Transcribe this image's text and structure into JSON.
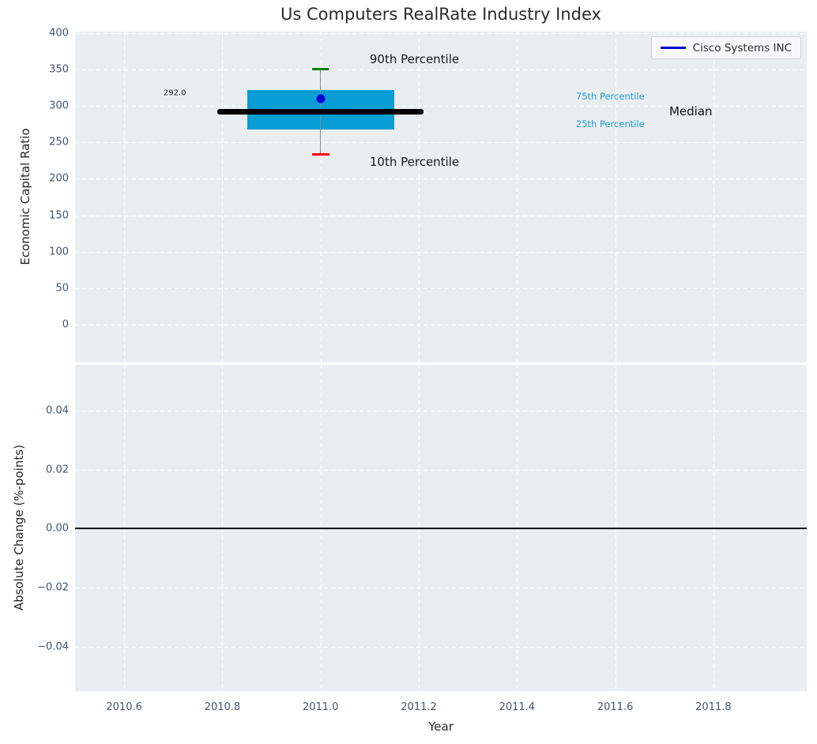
{
  "title": "Us Computers RealRate Industry Index",
  "legend": {
    "label": "Cisco Systems INC",
    "position": "upper right"
  },
  "colors": {
    "figure_bg": "#ffffff",
    "axes_bg": "#eaeef1",
    "grid": "#ffffff",
    "tick_label": "#46536b",
    "text": "#262626",
    "box_fill": "#089dd5",
    "percentile_label": "#1f9ecf",
    "median_line": "#000000",
    "whisker": "#888888",
    "p90_cap": "#008000",
    "p10_cap": "#ff0000",
    "company_marker": "#0000d6",
    "legend_line": "#0000cd",
    "zero_line": "#000000"
  },
  "chart_data": [
    {
      "type": "boxplot",
      "title": "Us Computers RealRate Industry Index",
      "ylabel": "Economic Capital Ratio",
      "ylim": [
        -52,
        402
      ],
      "grid": "white dashed, on",
      "yticks": [
        {
          "v": 400,
          "label": "400"
        },
        {
          "v": 350,
          "label": "350"
        },
        {
          "v": 300,
          "label": "300"
        },
        {
          "v": 250,
          "label": "250"
        },
        {
          "v": 200,
          "label": "200"
        },
        {
          "v": 150,
          "label": "150"
        },
        {
          "v": 100,
          "label": "100"
        },
        {
          "v": 50,
          "label": "50"
        },
        {
          "v": 0,
          "label": "0"
        }
      ],
      "box": {
        "company": "Cisco Systems INC",
        "x_center": 2011.0,
        "box_x_range": [
          2010.85,
          2011.15
        ],
        "median": 292.0,
        "median_label": "292.0",
        "median_x_range": [
          2010.79,
          2011.21
        ],
        "q1_25th_percentile": 268,
        "q3_75th_percentile": 322,
        "p10_10th_percentile": 233,
        "p90_90th_percentile": 350,
        "company_value": 310
      },
      "annotations": [
        {
          "text": "90th Percentile",
          "x": 2011.1,
          "y": 364,
          "color": "#1a1a1a",
          "size": 15
        },
        {
          "text": "10th Percentile",
          "x": 2011.1,
          "y": 223,
          "color": "#1a1a1a",
          "size": 15
        },
        {
          "text": "75th Percentile",
          "x": 2011.52,
          "y": 313,
          "color": "#1f9ecf",
          "size": 11.5
        },
        {
          "text": "25th Percentile",
          "x": 2011.52,
          "y": 275,
          "color": "#1f9ecf",
          "size": 11.5
        },
        {
          "text": "Median",
          "x": 2011.71,
          "y": 293,
          "color": "#111111",
          "size": 15
        },
        {
          "text": "292.0",
          "x": 2010.68,
          "y": 317,
          "color": "#1a1a1a",
          "size": 10
        }
      ]
    },
    {
      "type": "line",
      "ylabel": "Absolute Change (%-points)",
      "xlabel": "Year",
      "ylim": [
        -0.055,
        0.0555
      ],
      "xlim": [
        2010.5,
        2011.99
      ],
      "grid": "white dashed, on",
      "yticks": [
        {
          "v": 0.04,
          "label": "0.04"
        },
        {
          "v": 0.02,
          "label": "0.02"
        },
        {
          "v": 0,
          "label": "0.00"
        },
        {
          "v": -0.02,
          "label": "−0.02"
        },
        {
          "v": -0.04,
          "label": "−0.04"
        }
      ],
      "xticks": [
        {
          "v": 2010.6,
          "label": "2010.6"
        },
        {
          "v": 2010.8,
          "label": "2010.8"
        },
        {
          "v": 2011.0,
          "label": "2011.0"
        },
        {
          "v": 2011.2,
          "label": "2011.2"
        },
        {
          "v": 2011.4,
          "label": "2011.4"
        },
        {
          "v": 2011.6,
          "label": "2011.6"
        },
        {
          "v": 2011.8,
          "label": "2011.8"
        }
      ],
      "zero_line": 0.0,
      "series": []
    }
  ]
}
